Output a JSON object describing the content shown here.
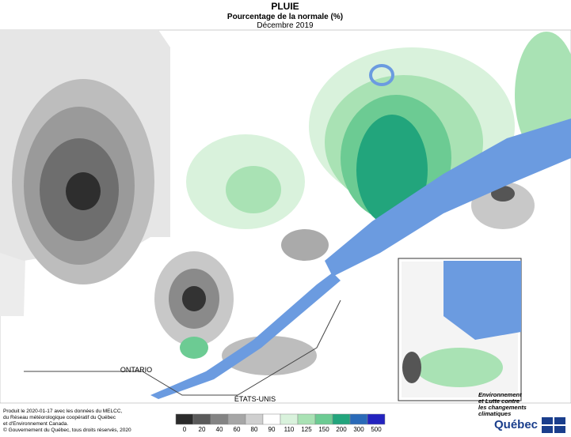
{
  "header": {
    "title": "PLUIE",
    "subtitle": "Pourcentage de la normale (%)",
    "period": "Décembre 2019"
  },
  "map": {
    "labels": [
      "ONTARIO",
      "ÉTATS-UNIS"
    ]
  },
  "legend": {
    "ticks": [
      0,
      20,
      40,
      60,
      80,
      90,
      110,
      125,
      150,
      200,
      300,
      500
    ],
    "colors": [
      "#2b2b2b",
      "#5a5a5a",
      "#838383",
      "#a6a6a6",
      "#cfcfcf",
      "#ffffff",
      "#d9f2dc",
      "#a9e2b4",
      "#6ccb93",
      "#22a57c",
      "#2a6ab8",
      "#2323bf"
    ]
  },
  "credits": [
    "Produit le 2020-01-17 avec les données du MELCC,",
    "du Réseau météorologique coopératif du Québec",
    "et d'Environnement Canada.",
    "© Gouvernement du Québec, tous droits réservés, 2020"
  ],
  "logo": {
    "ministry": [
      "Environnement",
      "et Lutte contre",
      "les changements",
      "climatiques"
    ],
    "name": "Québec"
  }
}
